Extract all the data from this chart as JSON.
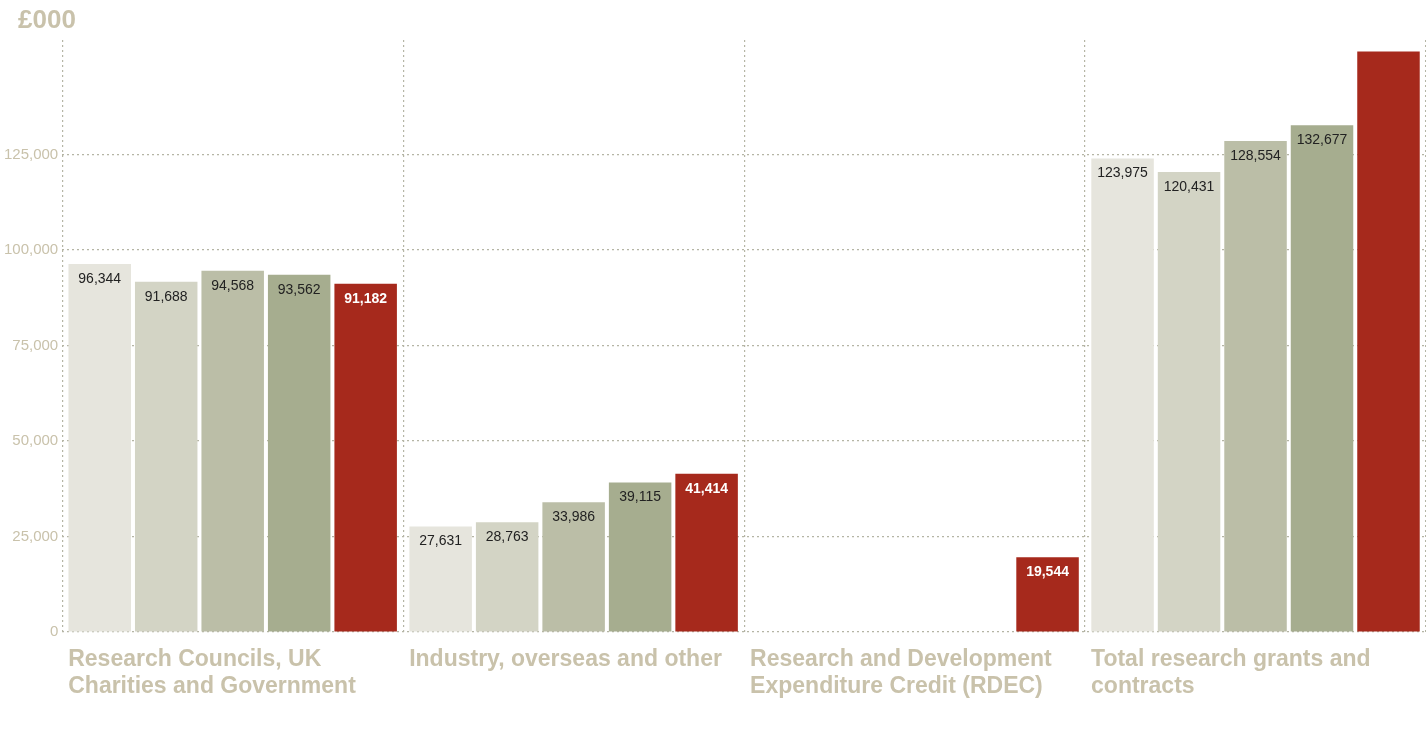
{
  "chart_data": {
    "type": "bar",
    "ylabel": "£000",
    "categories": [
      "Research Councils, UK Charities and Government",
      "Industry, overseas and other",
      "Research and Development Expenditure Credit (RDEC)",
      "Total research grants and contracts"
    ],
    "series": [
      {
        "color": "#e6e5dd",
        "values": [
          96344,
          27631,
          null,
          123975
        ],
        "value_labels": [
          "96,344",
          "27,631",
          null,
          "123,975"
        ]
      },
      {
        "color": "#d3d4c5",
        "values": [
          91688,
          28763,
          null,
          120431
        ],
        "value_labels": [
          "91,688",
          "28,763",
          null,
          "120,431"
        ]
      },
      {
        "color": "#bbbea7",
        "values": [
          94568,
          33986,
          null,
          128554
        ],
        "value_labels": [
          "94,568",
          "33,986",
          null,
          "128,554"
        ]
      },
      {
        "color": "#a6ad8f",
        "values": [
          93562,
          39115,
          null,
          132677
        ],
        "value_labels": [
          "93,562",
          "39,115",
          null,
          "132,677"
        ]
      },
      {
        "color": "#a6291c",
        "values": [
          91182,
          41414,
          19544,
          152000
        ],
        "value_labels": [
          "91,182",
          "41,414",
          "19,544",
          null
        ]
      }
    ],
    "ylim": [
      0,
      155000
    ],
    "yticks": [
      {
        "value": 0,
        "label": "0"
      },
      {
        "value": 25000,
        "label": "25,000"
      },
      {
        "value": 50000,
        "label": "50,000"
      },
      {
        "value": 75000,
        "label": "75,000"
      },
      {
        "value": 100000,
        "label": "100,000"
      },
      {
        "value": 125000,
        "label": "125,000"
      }
    ],
    "grid": true,
    "legend": false
  }
}
